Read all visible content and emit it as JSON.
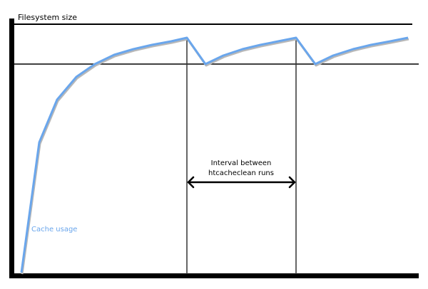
{
  "title": "Filesystem size",
  "series_label": "Cache usage",
  "interval_label": [
    "Interval between",
    "htcacheclean runs"
  ],
  "colors": {
    "curve": "#6aa6ec",
    "axis": "#000000",
    "shadow": "#b0b0b0"
  }
}
